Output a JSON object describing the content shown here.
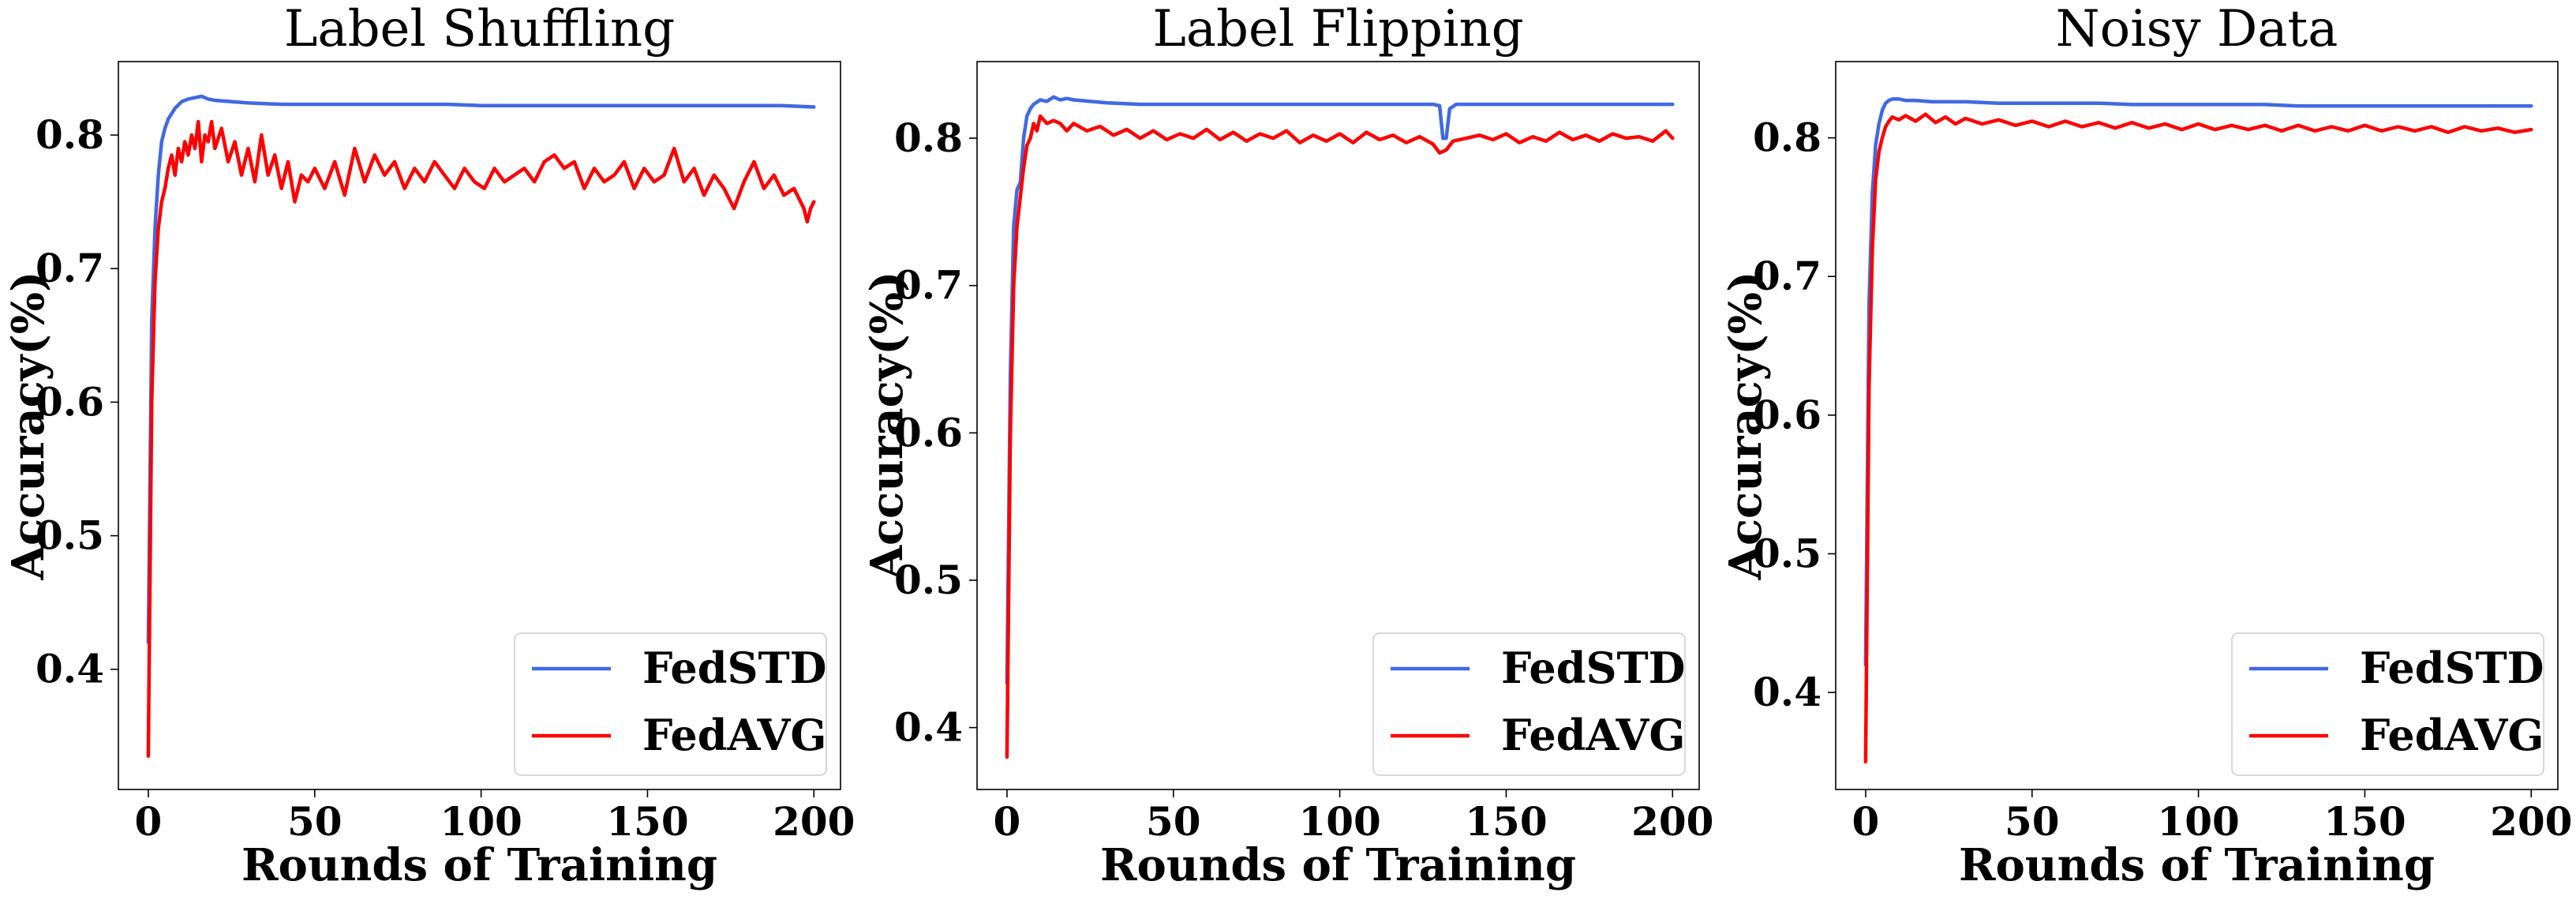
{
  "chart_data": [
    {
      "type": "line",
      "title": "Label Shuffling",
      "xlabel": "Rounds of Training",
      "ylabel": "Accuracy(%)",
      "xlim": [
        -9,
        208
      ],
      "ylim": [
        0.31,
        0.855
      ],
      "xticks": [
        0,
        50,
        100,
        150,
        200
      ],
      "yticks": [
        0.4,
        0.5,
        0.6,
        0.7,
        0.8
      ],
      "xtick_labels": [
        "0",
        "50",
        "100",
        "150",
        "200"
      ],
      "ytick_labels": [
        "0.4",
        "0.5",
        "0.6",
        "0.7",
        "0.8"
      ],
      "legend_position": "lower-right",
      "series": [
        {
          "name": "FedSTD",
          "color": "#4169e1",
          "x": [
            0,
            1,
            2,
            3,
            4,
            5,
            6,
            8,
            10,
            12,
            14,
            16,
            18,
            20,
            25,
            30,
            40,
            50,
            60,
            70,
            80,
            90,
            100,
            110,
            120,
            130,
            140,
            150,
            160,
            170,
            180,
            190,
            200
          ],
          "y": [
            0.42,
            0.66,
            0.73,
            0.77,
            0.795,
            0.805,
            0.812,
            0.82,
            0.825,
            0.827,
            0.828,
            0.829,
            0.827,
            0.826,
            0.825,
            0.824,
            0.823,
            0.823,
            0.823,
            0.823,
            0.823,
            0.823,
            0.822,
            0.822,
            0.822,
            0.822,
            0.822,
            0.822,
            0.822,
            0.822,
            0.822,
            0.822,
            0.821
          ]
        },
        {
          "name": "FedAVG",
          "color": "#ff0000",
          "x": [
            0,
            1,
            2,
            3,
            4,
            5,
            6,
            7,
            8,
            9,
            10,
            11,
            12,
            13,
            14,
            15,
            16,
            17,
            18,
            19,
            20,
            22,
            24,
            26,
            28,
            30,
            32,
            34,
            36,
            38,
            40,
            42,
            44,
            46,
            48,
            50,
            53,
            56,
            59,
            62,
            65,
            68,
            71,
            74,
            77,
            80,
            83,
            86,
            89,
            92,
            95,
            98,
            101,
            104,
            107,
            110,
            113,
            116,
            119,
            122,
            125,
            128,
            131,
            134,
            137,
            140,
            143,
            146,
            149,
            152,
            155,
            158,
            161,
            164,
            167,
            170,
            173,
            176,
            179,
            182,
            185,
            188,
            191,
            194,
            196,
            197,
            198,
            199,
            200
          ],
          "y": [
            0.335,
            0.6,
            0.69,
            0.73,
            0.75,
            0.76,
            0.775,
            0.785,
            0.77,
            0.79,
            0.78,
            0.795,
            0.785,
            0.8,
            0.79,
            0.81,
            0.78,
            0.8,
            0.795,
            0.81,
            0.79,
            0.805,
            0.78,
            0.795,
            0.77,
            0.79,
            0.765,
            0.8,
            0.77,
            0.785,
            0.76,
            0.78,
            0.75,
            0.77,
            0.765,
            0.775,
            0.76,
            0.78,
            0.755,
            0.79,
            0.765,
            0.785,
            0.77,
            0.78,
            0.76,
            0.775,
            0.765,
            0.78,
            0.77,
            0.76,
            0.775,
            0.765,
            0.76,
            0.775,
            0.765,
            0.77,
            0.775,
            0.765,
            0.78,
            0.785,
            0.775,
            0.78,
            0.76,
            0.775,
            0.765,
            0.77,
            0.78,
            0.76,
            0.775,
            0.765,
            0.77,
            0.79,
            0.765,
            0.775,
            0.755,
            0.77,
            0.76,
            0.745,
            0.765,
            0.78,
            0.76,
            0.77,
            0.755,
            0.76,
            0.75,
            0.745,
            0.735,
            0.745,
            0.75
          ]
        }
      ]
    },
    {
      "type": "line",
      "title": "Label Flipping",
      "xlabel": "Rounds of Training",
      "ylabel": "Accuracy(%)",
      "xlim": [
        -9,
        208
      ],
      "ylim": [
        0.358,
        0.852
      ],
      "xticks": [
        0,
        50,
        100,
        150,
        200
      ],
      "yticks": [
        0.4,
        0.5,
        0.6,
        0.7,
        0.8
      ],
      "xtick_labels": [
        "0",
        "50",
        "100",
        "150",
        "200"
      ],
      "ytick_labels": [
        "0.4",
        "0.5",
        "0.6",
        "0.7",
        "0.8"
      ],
      "legend_position": "lower-right",
      "series": [
        {
          "name": "FedSTD",
          "color": "#4169e1",
          "x": [
            0,
            1,
            2,
            3,
            4,
            5,
            6,
            7,
            8,
            10,
            12,
            14,
            16,
            18,
            20,
            25,
            30,
            40,
            50,
            60,
            70,
            80,
            90,
            100,
            110,
            120,
            128,
            130,
            131,
            132,
            133,
            135,
            140,
            150,
            160,
            170,
            180,
            190,
            200
          ],
          "y": [
            0.43,
            0.64,
            0.74,
            0.765,
            0.77,
            0.8,
            0.815,
            0.82,
            0.823,
            0.826,
            0.825,
            0.828,
            0.826,
            0.827,
            0.826,
            0.825,
            0.824,
            0.823,
            0.823,
            0.823,
            0.823,
            0.823,
            0.823,
            0.823,
            0.823,
            0.823,
            0.823,
            0.822,
            0.8,
            0.8,
            0.82,
            0.823,
            0.823,
            0.823,
            0.823,
            0.823,
            0.823,
            0.823,
            0.823
          ]
        },
        {
          "name": "FedAVG",
          "color": "#ff0000",
          "x": [
            0,
            1,
            2,
            3,
            4,
            5,
            6,
            7,
            8,
            9,
            10,
            12,
            14,
            16,
            18,
            20,
            24,
            28,
            32,
            36,
            40,
            44,
            48,
            52,
            56,
            60,
            64,
            68,
            72,
            76,
            80,
            84,
            88,
            92,
            96,
            100,
            104,
            108,
            112,
            116,
            120,
            124,
            128,
            130,
            132,
            134,
            138,
            142,
            146,
            150,
            154,
            158,
            162,
            166,
            170,
            174,
            178,
            182,
            186,
            190,
            194,
            198,
            200
          ],
          "y": [
            0.38,
            0.6,
            0.7,
            0.74,
            0.76,
            0.78,
            0.795,
            0.8,
            0.81,
            0.805,
            0.815,
            0.81,
            0.812,
            0.81,
            0.805,
            0.81,
            0.805,
            0.808,
            0.802,
            0.806,
            0.8,
            0.805,
            0.799,
            0.803,
            0.8,
            0.806,
            0.799,
            0.804,
            0.798,
            0.803,
            0.8,
            0.805,
            0.797,
            0.802,
            0.798,
            0.803,
            0.797,
            0.804,
            0.799,
            0.802,
            0.797,
            0.801,
            0.796,
            0.79,
            0.792,
            0.798,
            0.8,
            0.802,
            0.799,
            0.803,
            0.797,
            0.801,
            0.798,
            0.804,
            0.799,
            0.802,
            0.798,
            0.803,
            0.8,
            0.801,
            0.798,
            0.805,
            0.8
          ]
        }
      ]
    },
    {
      "type": "line",
      "title": "Noisy Data",
      "xlabel": "Rounds of Training",
      "ylabel": "Accuracy(%)",
      "xlim": [
        -9,
        208
      ],
      "ylim": [
        0.33,
        0.855
      ],
      "xticks": [
        0,
        50,
        100,
        150,
        200
      ],
      "yticks": [
        0.4,
        0.5,
        0.6,
        0.7,
        0.8
      ],
      "xtick_labels": [
        "0",
        "50",
        "100",
        "150",
        "200"
      ],
      "ytick_labels": [
        "0.4",
        "0.5",
        "0.6",
        "0.7",
        "0.8"
      ],
      "legend_position": "lower-right",
      "series": [
        {
          "name": "FedSTD",
          "color": "#4169e1",
          "x": [
            0,
            1,
            2,
            3,
            4,
            5,
            6,
            7,
            8,
            10,
            12,
            15,
            20,
            30,
            40,
            50,
            60,
            70,
            80,
            90,
            100,
            110,
            120,
            130,
            140,
            150,
            160,
            170,
            180,
            190,
            200
          ],
          "y": [
            0.42,
            0.68,
            0.76,
            0.795,
            0.81,
            0.82,
            0.825,
            0.827,
            0.828,
            0.828,
            0.827,
            0.827,
            0.826,
            0.826,
            0.825,
            0.825,
            0.825,
            0.825,
            0.824,
            0.824,
            0.824,
            0.824,
            0.824,
            0.823,
            0.823,
            0.823,
            0.823,
            0.823,
            0.823,
            0.823,
            0.823
          ]
        },
        {
          "name": "FedAVG",
          "color": "#ff0000",
          "x": [
            0,
            1,
            2,
            3,
            4,
            5,
            6,
            7,
            8,
            10,
            12,
            15,
            18,
            21,
            24,
            27,
            30,
            35,
            40,
            45,
            50,
            55,
            60,
            65,
            70,
            75,
            80,
            85,
            90,
            95,
            100,
            105,
            110,
            115,
            120,
            125,
            130,
            135,
            140,
            145,
            150,
            155,
            160,
            165,
            170,
            175,
            180,
            185,
            190,
            195,
            200
          ],
          "y": [
            0.35,
            0.62,
            0.72,
            0.77,
            0.79,
            0.8,
            0.808,
            0.812,
            0.815,
            0.813,
            0.816,
            0.812,
            0.817,
            0.811,
            0.815,
            0.81,
            0.814,
            0.81,
            0.813,
            0.809,
            0.812,
            0.808,
            0.812,
            0.808,
            0.811,
            0.807,
            0.811,
            0.807,
            0.81,
            0.806,
            0.81,
            0.806,
            0.809,
            0.806,
            0.809,
            0.805,
            0.809,
            0.805,
            0.808,
            0.805,
            0.809,
            0.805,
            0.808,
            0.805,
            0.808,
            0.804,
            0.808,
            0.805,
            0.807,
            0.804,
            0.806
          ]
        }
      ]
    }
  ]
}
